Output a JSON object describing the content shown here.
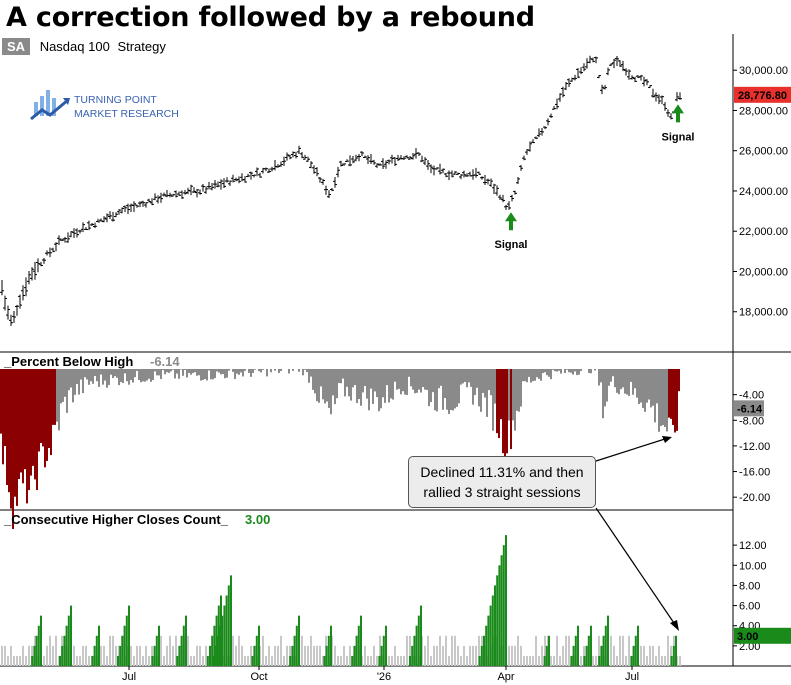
{
  "title": "A correction followed by a rebound",
  "header": {
    "badge": "SA",
    "symbol": "Nasdaq 100",
    "type": "Strategy"
  },
  "logo": {
    "line1": "TURNING POINT",
    "line2": "MARKET RESEARCH"
  },
  "colors": {
    "price_last_bg": "#e8302c",
    "dd_deep": "#8b0000",
    "dd_normal": "#8a8a8a",
    "count_green": "#1a8a1a",
    "count_gray": "#c8c8c8",
    "arrow": "#1a8a1a"
  },
  "annotation": {
    "line1": "Declined 11.31% and then",
    "line2": "rallied 3 straight sessions"
  },
  "signals": [
    "Signal",
    "Signal"
  ],
  "chart_data": [
    {
      "type": "ohlc",
      "panel": "price",
      "x_labels": [
        "Jul",
        "Oct",
        "'26",
        "Apr",
        "Jul"
      ],
      "y_ticks": [
        "18,000.00",
        "20,000.00",
        "22,000.00",
        "24,000.00",
        "26,000.00",
        "28,000.00",
        "30,000.00"
      ],
      "ylim": [
        16000,
        31500
      ],
      "last_value": "28,776.80",
      "price_path": [
        [
          0,
          19700
        ],
        [
          6,
          18200
        ],
        [
          12,
          17400
        ],
        [
          20,
          18600
        ],
        [
          30,
          19800
        ],
        [
          45,
          20700
        ],
        [
          60,
          21500
        ],
        [
          80,
          22100
        ],
        [
          100,
          22500
        ],
        [
          120,
          23000
        ],
        [
          140,
          23300
        ],
        [
          160,
          23700
        ],
        [
          180,
          23900
        ],
        [
          200,
          24000
        ],
        [
          230,
          24500
        ],
        [
          260,
          24900
        ],
        [
          280,
          25400
        ],
        [
          300,
          26000
        ],
        [
          310,
          25400
        ],
        [
          320,
          24600
        ],
        [
          330,
          23800
        ],
        [
          340,
          25300
        ],
        [
          360,
          25800
        ],
        [
          380,
          25200
        ],
        [
          400,
          25700
        ],
        [
          420,
          25800
        ],
        [
          430,
          25100
        ],
        [
          445,
          24900
        ],
        [
          460,
          24800
        ],
        [
          475,
          24900
        ],
        [
          490,
          24400
        ],
        [
          500,
          23800
        ],
        [
          508,
          23100
        ],
        [
          515,
          23900
        ],
        [
          525,
          25800
        ],
        [
          535,
          26500
        ],
        [
          545,
          27200
        ],
        [
          555,
          28200
        ],
        [
          565,
          29100
        ],
        [
          575,
          29700
        ],
        [
          585,
          30200
        ],
        [
          595,
          30700
        ],
        [
          603,
          28700
        ],
        [
          610,
          30300
        ],
        [
          620,
          30400
        ],
        [
          630,
          29800
        ],
        [
          645,
          29400
        ],
        [
          655,
          28800
        ],
        [
          665,
          28300
        ],
        [
          672,
          27500
        ],
        [
          678,
          28800
        ]
      ],
      "signal_positions": [
        511,
        678
      ]
    },
    {
      "type": "bar",
      "panel": "drawdown",
      "title": "_Percent Below High",
      "current_value": "-6.14",
      "y_ticks": [
        "-4.00",
        "-8.00",
        "-12.00",
        "-16.00",
        "-20.00"
      ],
      "ylim": [
        -22,
        0
      ],
      "deep_threshold": -10,
      "drawdown_path": [
        [
          0,
          -12
        ],
        [
          6,
          -16
        ],
        [
          12,
          -22
        ],
        [
          20,
          -18
        ],
        [
          30,
          -19
        ],
        [
          40,
          -14
        ],
        [
          50,
          -12
        ],
        [
          56,
          -9
        ],
        [
          62,
          -6
        ],
        [
          70,
          -4
        ],
        [
          90,
          -2
        ],
        [
          120,
          -1.5
        ],
        [
          160,
          -1
        ],
        [
          200,
          -1
        ],
        [
          260,
          -0.5
        ],
        [
          300,
          0
        ],
        [
          310,
          -1.5
        ],
        [
          320,
          -5
        ],
        [
          330,
          -7.5
        ],
        [
          340,
          -3
        ],
        [
          360,
          -4
        ],
        [
          380,
          -5
        ],
        [
          400,
          -2.5
        ],
        [
          420,
          -3
        ],
        [
          430,
          -4.5
        ],
        [
          450,
          -5
        ],
        [
          470,
          -3.5
        ],
        [
          490,
          -6
        ],
        [
          500,
          -9.5
        ],
        [
          505,
          -12
        ],
        [
          515,
          -7
        ],
        [
          525,
          -2
        ],
        [
          540,
          -1
        ],
        [
          560,
          -0.5
        ],
        [
          595,
          0
        ],
        [
          603,
          -6
        ],
        [
          610,
          -2
        ],
        [
          630,
          -3.5
        ],
        [
          645,
          -5
        ],
        [
          660,
          -8
        ],
        [
          668,
          -9.5
        ],
        [
          671,
          -11.3
        ],
        [
          678,
          -6.14
        ]
      ]
    },
    {
      "type": "bar",
      "panel": "consecutive",
      "title": "_Consecutive Higher Closes Count_",
      "current_value": "3.00",
      "y_ticks": [
        "2.00",
        "4.00",
        "6.00",
        "8.00",
        "10.00",
        "12.00"
      ],
      "ylim": [
        0,
        14
      ],
      "highlight_threshold": 3,
      "count_runs": [
        [
          40,
          5
        ],
        [
          70,
          6
        ],
        [
          98,
          4
        ],
        [
          128,
          6
        ],
        [
          158,
          4
        ],
        [
          185,
          5
        ],
        [
          220,
          7
        ],
        [
          230,
          9
        ],
        [
          258,
          4
        ],
        [
          298,
          5
        ],
        [
          330,
          4
        ],
        [
          360,
          5
        ],
        [
          385,
          4
        ],
        [
          420,
          6
        ],
        [
          505,
          13
        ],
        [
          548,
          3
        ],
        [
          577,
          4
        ],
        [
          590,
          4
        ],
        [
          607,
          5
        ],
        [
          637,
          4
        ],
        [
          675,
          3
        ]
      ]
    }
  ]
}
